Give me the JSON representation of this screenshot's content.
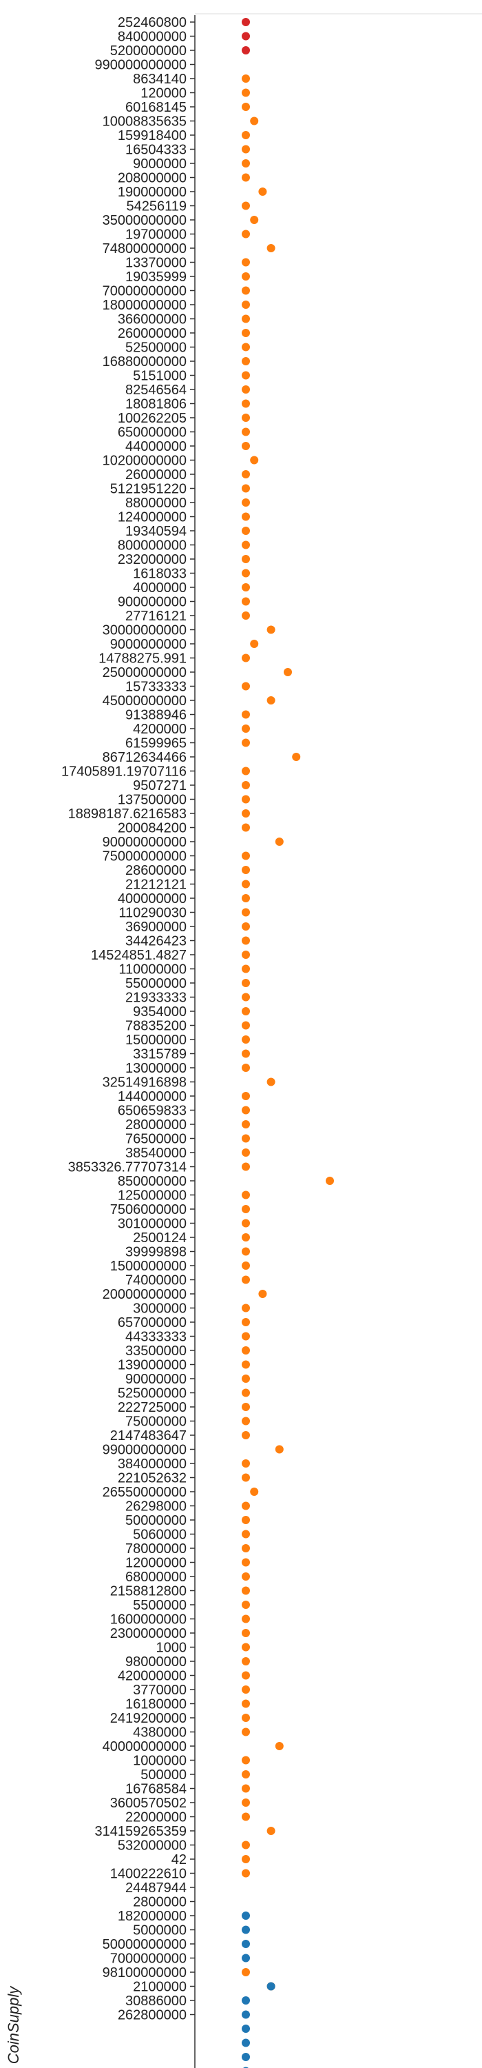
{
  "chart_data": {
    "type": "scatter",
    "ylabel": "CoinSupply",
    "xlabel": "",
    "categories": [
      "252460800",
      "840000000",
      "5200000000",
      "990000000000",
      "8634140",
      "120000",
      "60168145",
      "10008835635",
      "159918400",
      "16504333",
      "9000000",
      "208000000",
      "190000000",
      "54256119",
      "35000000000",
      "19700000",
      "74800000000",
      "13370000",
      "19035999",
      "70000000000",
      "18000000000",
      "366000000",
      "260000000",
      "52500000",
      "16880000000",
      "5151000",
      "82546564",
      "18081806",
      "100262205",
      "650000000",
      "44000000",
      "10200000000",
      "26000000",
      "5121951220",
      "88000000",
      "124000000",
      "19340594",
      "800000000",
      "232000000",
      "1618033",
      "4000000",
      "900000000",
      "27716121",
      "30000000000",
      "9000000000",
      "14788275.991",
      "25000000000",
      "15733333",
      "45000000000",
      "91388946",
      "4200000",
      "61599965",
      "86712634466",
      "17405891.19707116",
      "9507271",
      "137500000",
      "18898187.6216583",
      "200084200",
      "90000000000",
      "75000000000",
      "28600000",
      "21212121",
      "400000000",
      "110290030",
      "36900000",
      "34426423",
      "14524851.4827",
      "110000000",
      "55000000",
      "21933333",
      "9354000",
      "78835200",
      "15000000",
      "3315789",
      "13000000",
      "32514916898",
      "144000000",
      "650659833",
      "28000000",
      "76500000",
      "38540000",
      "3853326.77707314",
      "850000000",
      "125000000",
      "7506000000",
      "301000000",
      "2500124",
      "39999898",
      "1500000000",
      "74000000",
      "20000000000",
      "3000000",
      "657000000",
      "44333333",
      "33500000",
      "139000000",
      "90000000",
      "525000000",
      "222725000",
      "75000000",
      "2147483647",
      "99000000000",
      "384000000",
      "221052632",
      "26550000000",
      "26298000",
      "50000000",
      "5060000",
      "78000000",
      "12000000",
      "68000000",
      "2158812800",
      "5500000",
      "1600000000",
      "2300000000",
      "1000",
      "98000000",
      "420000000",
      "3770000",
      "16180000",
      "2419200000",
      "4380000",
      "40000000000",
      "1000000",
      "500000",
      "16768584",
      "3600570502",
      "22000000",
      "314159265359",
      "532000000",
      "42",
      "1400222610",
      "24487944",
      "2800000",
      "182000000",
      "5000000",
      "50000000000",
      "7000000000",
      "98100000000",
      "2100000",
      "30886000",
      "262800000"
    ],
    "series": [
      {
        "color": "#d62728",
        "rows": [
          0,
          1,
          2
        ]
      },
      {
        "color": "#ff7f0e",
        "rows": [
          4,
          5,
          6,
          7,
          8,
          9,
          10,
          11,
          12,
          13,
          14,
          15,
          16,
          17,
          18,
          19,
          20,
          21,
          22,
          23,
          24,
          25,
          26,
          27,
          28,
          29,
          30,
          31,
          32,
          33,
          34,
          35,
          36,
          37,
          38,
          39,
          40,
          41,
          42,
          43,
          44,
          45,
          46,
          47,
          48,
          49,
          50,
          51,
          52,
          53,
          54,
          55,
          56,
          57,
          58,
          59,
          60,
          61,
          62,
          63,
          64,
          65,
          66,
          67,
          68,
          69,
          70,
          71,
          72,
          73,
          74,
          75,
          76,
          77,
          78,
          79,
          80,
          81,
          82,
          83,
          84,
          85,
          86,
          87,
          88,
          89,
          90,
          91,
          92,
          93,
          94,
          95,
          96,
          97,
          98,
          99,
          100,
          101,
          102,
          103,
          104,
          105,
          106,
          107,
          108,
          109,
          110,
          111,
          112,
          113,
          114,
          115,
          116,
          117,
          118,
          119,
          120,
          121,
          122,
          123,
          124,
          125,
          126,
          127,
          128,
          129,
          130,
          131,
          132,
          133,
          138,
          139
        ]
      },
      {
        "color": "#1f77b4",
        "rows": [
          134,
          135,
          136,
          137,
          139,
          140,
          141,
          142,
          143,
          144,
          145
        ]
      }
    ],
    "x_values": {
      "0": 1,
      "1": 1,
      "2": 1,
      "4": 1,
      "5": 1,
      "6": 1,
      "7": 2,
      "8": 1,
      "9": 1,
      "10": 1,
      "11": 1,
      "12": 3,
      "13": 1,
      "14": 2,
      "15": 1,
      "16": 4,
      "17": 1,
      "18": 1,
      "19": 1,
      "20": 1,
      "21": 1,
      "22": 1,
      "23": 1,
      "24": 1,
      "25": 1,
      "26": 1,
      "27": 1,
      "28": 1,
      "29": 1,
      "30": 1,
      "31": 2,
      "32": 1,
      "33": 1,
      "34": 1,
      "35": 1,
      "36": 1,
      "37": 1,
      "38": 1,
      "39": 1,
      "40": 1,
      "41": 1,
      "42": 1,
      "43": 4,
      "44": 2,
      "45": 1,
      "46": 6,
      "47": 1,
      "48": 4,
      "49": 1,
      "50": 1,
      "51": 1,
      "52": 7,
      "53": 1,
      "54": 1,
      "55": 1,
      "56": 1,
      "57": 1,
      "58": 5,
      "59": 1,
      "60": 1,
      "61": 1,
      "62": 1,
      "63": 1,
      "64": 1,
      "65": 1,
      "66": 1,
      "67": 1,
      "68": 1,
      "69": 1,
      "70": 1,
      "71": 1,
      "72": 1,
      "73": 1,
      "74": 1,
      "75": 4,
      "76": 1,
      "77": 1,
      "78": 1,
      "79": 1,
      "80": 1,
      "81": 1,
      "82": 11,
      "83": 1,
      "84": 1,
      "85": 1,
      "86": 1,
      "87": 1,
      "88": 1,
      "89": 1,
      "90": 3,
      "91": 1,
      "92": 1,
      "93": 1,
      "94": 1,
      "95": 1,
      "96": 1,
      "97": 1,
      "98": 1,
      "99": 1,
      "100": 1,
      "101": 5,
      "102": 1,
      "103": 1,
      "104": 2,
      "105": 1,
      "106": 1,
      "107": 1,
      "108": 1,
      "109": 1,
      "110": 1,
      "111": 1,
      "112": 1,
      "113": 1,
      "114": 1,
      "115": 1,
      "116": 1,
      "117": 1,
      "118": 1,
      "119": 1,
      "120": 1,
      "121": 1,
      "122": 5,
      "123": 1,
      "124": 1,
      "125": 1,
      "126": 1,
      "127": 1,
      "128": 4,
      "129": 1,
      "130": 1,
      "131": 1,
      "134": 1,
      "135": 1,
      "136": 1,
      "137": 1,
      "138": 1,
      "139": 4,
      "140": 1,
      "141": 1,
      "142": 1,
      "143": 1,
      "144": 1,
      "145": 1
    },
    "grid": false,
    "legend": "none"
  }
}
